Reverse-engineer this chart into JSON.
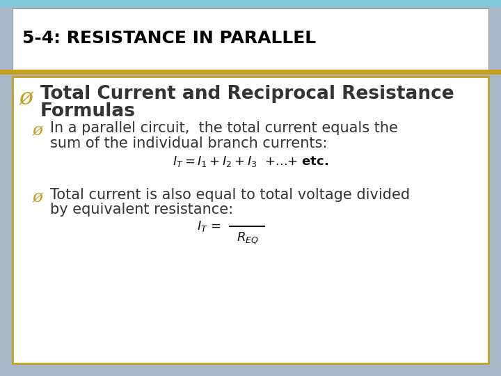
{
  "title": "5-4: RESISTANCE IN PARALLEL",
  "title_bg": "#ffffff",
  "title_color": "#000000",
  "title_fontsize": 18,
  "content_bg": "#ffffff",
  "outer_bg_left": "#b0bec5",
  "outer_bg_right": "#b0bec5",
  "top_accent": "#7ecfd8",
  "separator_color": "#c8a020",
  "border_color": "#c8a020",
  "bullet1_color": "#c8a020",
  "bullet1_fontsize": 19,
  "sub_bullet_color": "#c8a020",
  "sub_bullet_fontsize": 15,
  "body_text_color": "#333333",
  "formula_color": "#111111",
  "sub1_line1": "In a parallel circuit,  the total current equals the",
  "sub1_line2": "sum of the individual branch currents:",
  "sub2_line1": "Total current is also equal to total voltage divided",
  "sub2_line2": "by equivalent resistance:"
}
